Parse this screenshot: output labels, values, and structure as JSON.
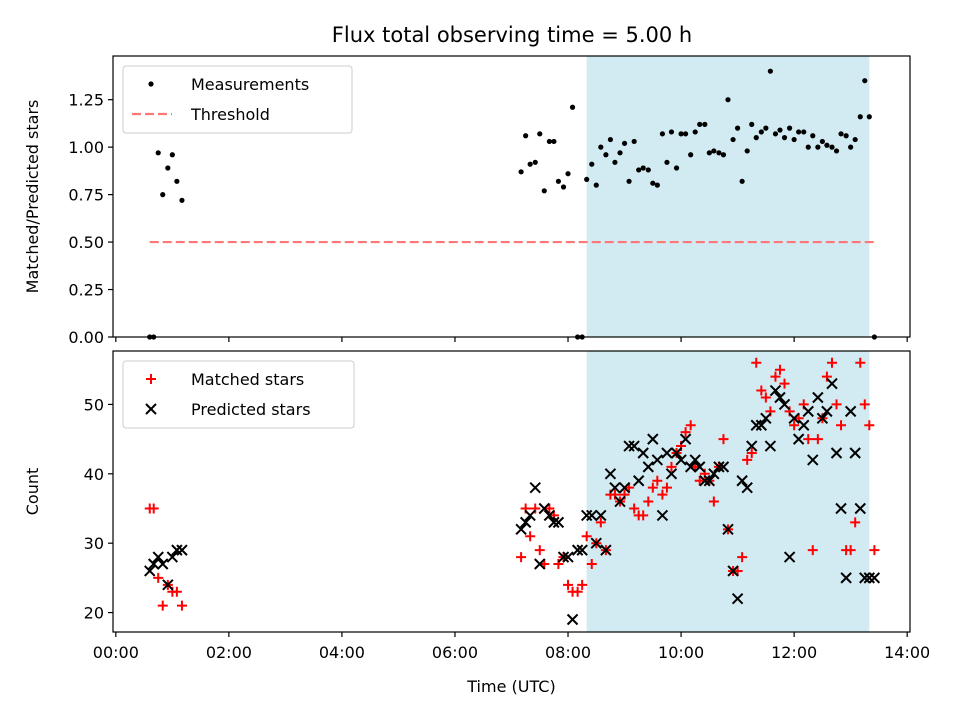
{
  "title": "Flux total observing time = 5.00 h",
  "colors": {
    "measure": "#000000",
    "threshold": "#ff7777",
    "matched": "#ff0000",
    "predicted": "#000000",
    "span": "#add8e6"
  },
  "chart_data": [
    {
      "type": "scatter",
      "ylabel": "Matched/Predicted stars",
      "xlim": [
        -0.05,
        14.05
      ],
      "ylim": [
        0,
        1.48
      ],
      "yticks": [
        0.0,
        0.25,
        0.5,
        0.75,
        1.0,
        1.25
      ],
      "ytick_labels": [
        "0.00",
        "0.25",
        "0.50",
        "0.75",
        "1.00",
        "1.25"
      ],
      "highlight_span_hours": [
        8.33,
        13.33
      ],
      "legend_position": "upper-left",
      "legend": [
        {
          "label": "Measurements"
        },
        {
          "label": "Threshold"
        }
      ],
      "series": [
        {
          "name": "Measurements",
          "kind": "dots",
          "x": [
            0.6,
            0.67,
            0.75,
            0.83,
            0.92,
            1.0,
            1.08,
            1.17,
            7.17,
            7.25,
            7.33,
            7.42,
            7.5,
            7.58,
            7.67,
            7.75,
            7.83,
            7.92,
            8.0,
            8.08,
            8.17,
            8.25,
            8.33,
            8.42,
            8.5,
            8.58,
            8.67,
            8.75,
            8.83,
            8.92,
            9.0,
            9.08,
            9.17,
            9.25,
            9.33,
            9.42,
            9.5,
            9.58,
            9.67,
            9.75,
            9.83,
            9.92,
            10.0,
            10.08,
            10.17,
            10.25,
            10.33,
            10.42,
            10.5,
            10.58,
            10.67,
            10.75,
            10.83,
            10.92,
            11.0,
            11.08,
            11.17,
            11.25,
            11.33,
            11.42,
            11.5,
            11.58,
            11.67,
            11.75,
            11.83,
            11.92,
            12.0,
            12.08,
            12.17,
            12.25,
            12.33,
            12.42,
            12.5,
            12.58,
            12.67,
            12.75,
            12.83,
            12.92,
            13.0,
            13.08,
            13.17,
            13.25,
            13.33,
            13.42
          ],
          "y": [
            0.0,
            0.0,
            0.97,
            0.75,
            0.89,
            0.96,
            0.82,
            0.72,
            0.87,
            1.06,
            0.91,
            0.92,
            1.07,
            0.77,
            1.03,
            1.03,
            0.82,
            0.79,
            0.86,
            1.21,
            0.0,
            0.0,
            0.83,
            0.91,
            0.8,
            1.0,
            0.96,
            1.04,
            0.92,
            0.97,
            1.02,
            0.82,
            1.03,
            0.88,
            0.89,
            0.88,
            0.81,
            0.8,
            1.07,
            0.92,
            1.08,
            0.89,
            1.07,
            1.07,
            0.96,
            1.08,
            1.12,
            1.12,
            0.97,
            0.98,
            0.97,
            0.96,
            1.25,
            1.04,
            1.1,
            0.82,
            0.98,
            1.12,
            1.05,
            1.08,
            1.1,
            1.4,
            1.07,
            1.09,
            1.05,
            1.1,
            1.04,
            1.08,
            1.08,
            1.0,
            1.06,
            1.0,
            1.03,
            1.01,
            1.0,
            0.98,
            1.07,
            1.06,
            1.0,
            1.04,
            1.16,
            1.35,
            1.16,
            0.0
          ]
        },
        {
          "name": "Threshold",
          "kind": "dashed",
          "x": [
            0.6,
            13.42
          ],
          "y": [
            0.5,
            0.5
          ]
        }
      ]
    },
    {
      "type": "scatter",
      "xlabel": "Time (UTC)",
      "ylabel": "Count",
      "xlim": [
        -0.05,
        14.05
      ],
      "ylim": [
        17.2,
        57.7
      ],
      "yticks": [
        20,
        30,
        40,
        50
      ],
      "ytick_labels": [
        "20",
        "30",
        "40",
        "50"
      ],
      "xticks": [
        0,
        2,
        4,
        6,
        8,
        10,
        12,
        14
      ],
      "xtick_labels": [
        "00:00",
        "02:00",
        "04:00",
        "06:00",
        "08:00",
        "10:00",
        "12:00",
        "14:00"
      ],
      "highlight_span_hours": [
        8.33,
        13.33
      ],
      "legend_position": "upper-left",
      "legend": [
        {
          "label": "Matched stars"
        },
        {
          "label": "Predicted stars"
        }
      ],
      "series": [
        {
          "name": "Matched stars",
          "kind": "plus",
          "x": [
            0.6,
            0.67,
            0.75,
            0.83,
            0.92,
            1.0,
            1.08,
            1.17,
            7.17,
            7.25,
            7.33,
            7.42,
            7.5,
            7.58,
            7.67,
            7.75,
            7.83,
            7.92,
            8.0,
            8.08,
            8.17,
            8.25,
            8.33,
            8.42,
            8.5,
            8.58,
            8.67,
            8.75,
            8.83,
            8.92,
            9.0,
            9.08,
            9.17,
            9.25,
            9.33,
            9.42,
            9.5,
            9.58,
            9.67,
            9.75,
            9.83,
            9.92,
            10.0,
            10.08,
            10.17,
            10.25,
            10.33,
            10.42,
            10.5,
            10.58,
            10.67,
            10.75,
            10.83,
            10.92,
            11.0,
            11.08,
            11.17,
            11.25,
            11.33,
            11.42,
            11.5,
            11.58,
            11.67,
            11.75,
            11.83,
            11.92,
            12.0,
            12.08,
            12.17,
            12.25,
            12.33,
            12.42,
            12.5,
            12.58,
            12.67,
            12.75,
            12.83,
            12.92,
            13.0,
            13.08,
            13.17,
            13.25,
            13.33,
            13.42
          ],
          "y": [
            35,
            35,
            25,
            21,
            24,
            23,
            23,
            21,
            28,
            35,
            31,
            35,
            29,
            27,
            35,
            34,
            27,
            28,
            24,
            23,
            23,
            24,
            31,
            27,
            30,
            33,
            29,
            37,
            37,
            36,
            37,
            38,
            35,
            34,
            34,
            36,
            38,
            39,
            37,
            38,
            41,
            43,
            44,
            46,
            47,
            41,
            39,
            40,
            39,
            36,
            41,
            45,
            32,
            26,
            26,
            28,
            42,
            43,
            56,
            52,
            51,
            49,
            54,
            55,
            53,
            49,
            47,
            48,
            50,
            45,
            29,
            45,
            48,
            54,
            56,
            50,
            47,
            29,
            29,
            33,
            56,
            50,
            47,
            29
          ],
          "note": "Extreme late points also include values near 54, 56 around 13.1–13.2 h"
        },
        {
          "name": "Predicted stars",
          "kind": "x",
          "x": [
            0.6,
            0.67,
            0.75,
            0.83,
            0.92,
            1.0,
            1.08,
            1.17,
            7.17,
            7.25,
            7.33,
            7.42,
            7.5,
            7.58,
            7.67,
            7.75,
            7.83,
            7.92,
            8.0,
            8.08,
            8.17,
            8.25,
            8.33,
            8.42,
            8.5,
            8.58,
            8.67,
            8.75,
            8.83,
            8.92,
            9.0,
            9.08,
            9.17,
            9.25,
            9.33,
            9.42,
            9.5,
            9.58,
            9.67,
            9.75,
            9.83,
            9.92,
            10.0,
            10.08,
            10.17,
            10.25,
            10.33,
            10.42,
            10.5,
            10.58,
            10.67,
            10.75,
            10.83,
            10.92,
            11.0,
            11.08,
            11.17,
            11.25,
            11.33,
            11.42,
            11.5,
            11.58,
            11.67,
            11.75,
            11.83,
            11.92,
            12.0,
            12.08,
            12.17,
            12.25,
            12.33,
            12.42,
            12.5,
            12.58,
            12.67,
            12.75,
            12.83,
            12.92,
            13.0,
            13.08,
            13.17,
            13.25,
            13.33,
            13.42
          ],
          "y": [
            26,
            27,
            28,
            27,
            24,
            28,
            29,
            29,
            32,
            33,
            34,
            38,
            27,
            35,
            34,
            33,
            33,
            28,
            28,
            19,
            29,
            29,
            34,
            34,
            30,
            34,
            29,
            40,
            38,
            36,
            38,
            44,
            44,
            39,
            43,
            41,
            45,
            42,
            34,
            43,
            40,
            43,
            42,
            45,
            41,
            42,
            41,
            39,
            39,
            40,
            41,
            41,
            32,
            26,
            22,
            39,
            38,
            44,
            47,
            47,
            48,
            44,
            52,
            51,
            50,
            28,
            48,
            45,
            47,
            49,
            42,
            51,
            48,
            49,
            53,
            43,
            35,
            25,
            49,
            43,
            35,
            25,
            25,
            25
          ]
        }
      ]
    }
  ]
}
